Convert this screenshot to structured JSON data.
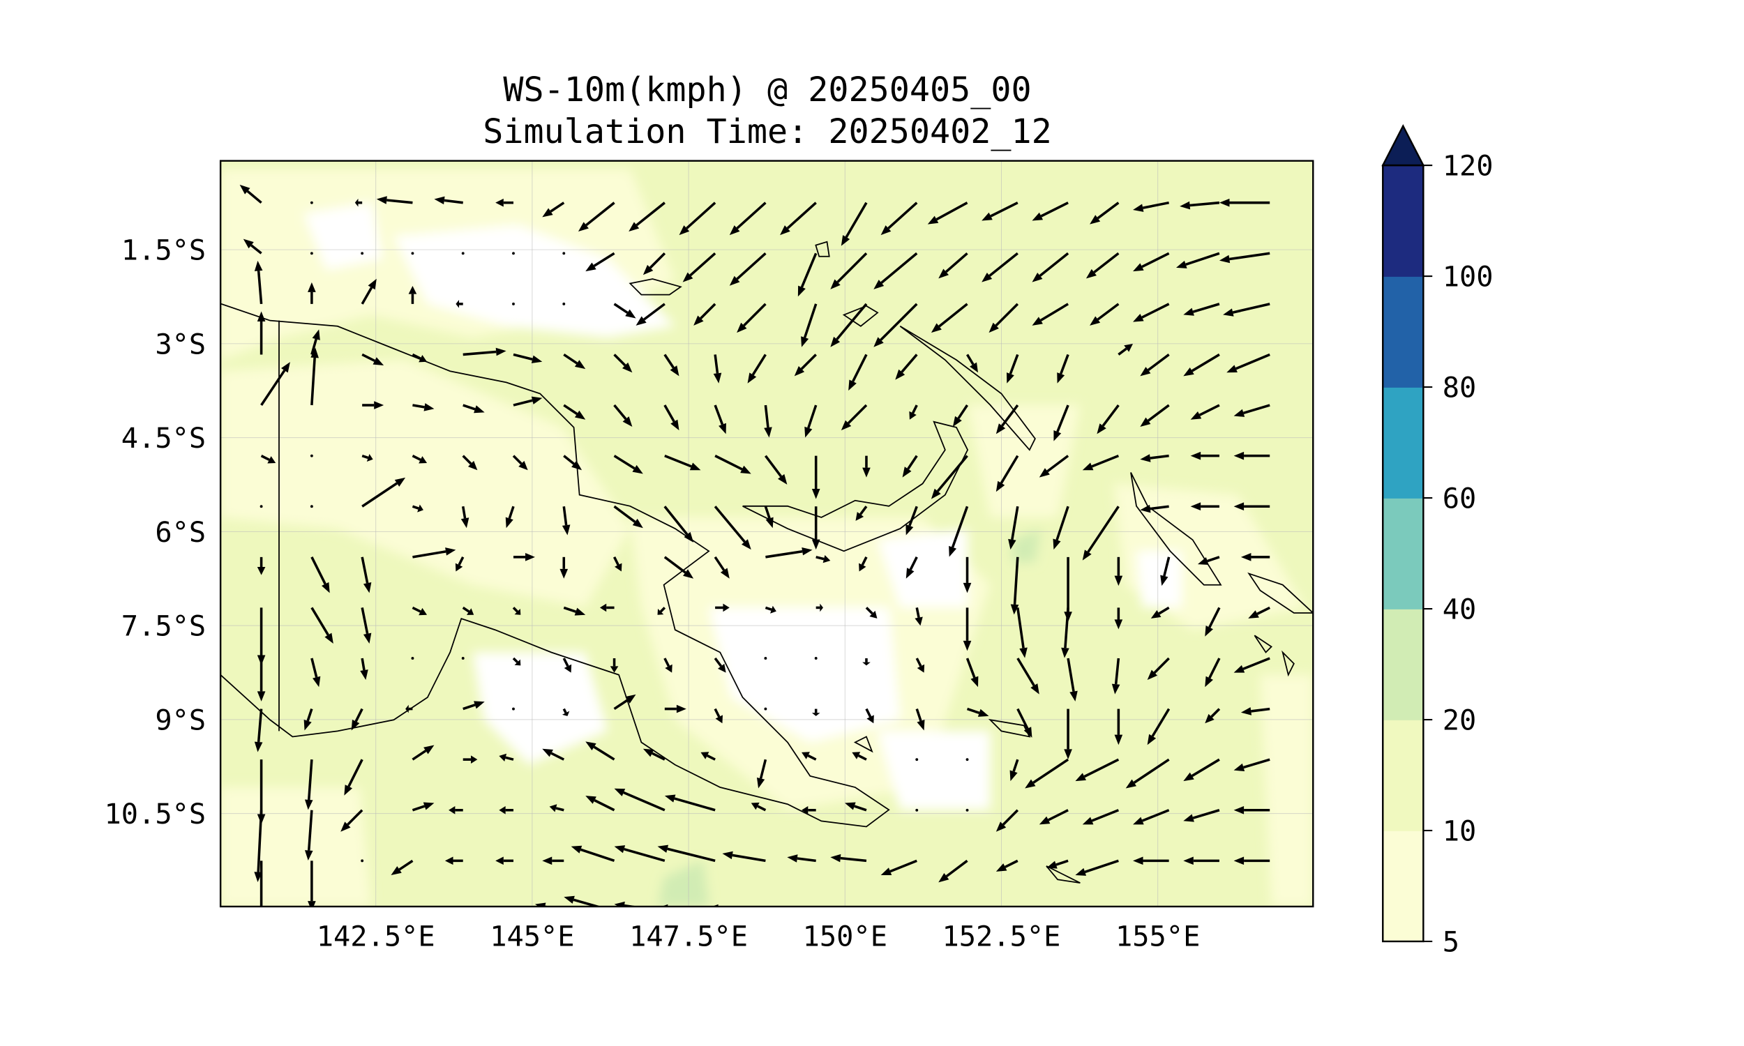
{
  "chart_data": {
    "type": "quiver-contour",
    "title": "WS-10m(kmph) @ 20250405_00",
    "subtitle": "Simulation Time: 20250402_12",
    "xlabel": "",
    "ylabel": "",
    "xlim": [
      140.0,
      157.5
    ],
    "ylim": [
      -12.0,
      -0.1
    ],
    "x_ticks": [
      142.5,
      145,
      147.5,
      150,
      152.5,
      155
    ],
    "x_tick_labels": [
      "142.5°E",
      "145°E",
      "147.5°E",
      "150°E",
      "152.5°E",
      "155°E"
    ],
    "y_ticks": [
      -1.5,
      -3,
      -4.5,
      -6,
      -7.5,
      -9,
      -10.5
    ],
    "y_tick_labels": [
      "1.5°S",
      "3°S",
      "4.5°S",
      "6°S",
      "7.5°S",
      "9°S",
      "10.5°S"
    ],
    "grid": true,
    "colorbar": {
      "levels": [
        5,
        10,
        20,
        40,
        60,
        80,
        100,
        120
      ],
      "tick_labels": [
        "5",
        "10",
        "20",
        "40",
        "60",
        "80",
        "100",
        "120"
      ],
      "colors": [
        "#fbfdd5",
        "#f0f9bf",
        "#d1ecb4",
        "#7bcabc",
        "#2fa3c2",
        "#2262a8",
        "#1d2b7f"
      ],
      "extend_color": "#0c1e56",
      "extend": "max",
      "placement": "right"
    },
    "field_dominant_color": "#eef8bd",
    "wind_grid": {
      "lon_start": 140.67,
      "lon_step": 0.806,
      "lat_start": -0.75,
      "lat_step": -0.808,
      "units": "kmph",
      "rows": [
        [
          [
            -6,
            5
          ],
          [
            0,
            0
          ],
          [
            -2,
            0
          ],
          [
            -10,
            1
          ],
          [
            -8,
            1
          ],
          [
            -5,
            0
          ],
          [
            -6,
            -4
          ],
          [
            -10,
            -8
          ],
          [
            -10,
            -8
          ],
          [
            -10,
            -9
          ],
          [
            -10,
            -9
          ],
          [
            -10,
            -9
          ],
          [
            -7,
            -12
          ],
          [
            -10,
            -9
          ],
          [
            -11,
            -6
          ],
          [
            -10,
            -5
          ],
          [
            -10,
            -5
          ],
          [
            -8,
            -6
          ],
          [
            -10,
            -2
          ],
          [
            -11,
            -1
          ],
          [
            -14,
            0
          ]
        ],
        [
          [
            -5,
            4
          ],
          [
            0,
            0
          ],
          [
            0,
            0
          ],
          [
            0,
            0
          ],
          [
            0,
            0
          ],
          [
            0,
            0
          ],
          [
            0,
            0
          ],
          [
            -8,
            -5
          ],
          [
            -6,
            -6
          ],
          [
            -9,
            -8
          ],
          [
            -10,
            -9
          ],
          [
            -5,
            -12
          ],
          [
            -10,
            -10
          ],
          [
            -12,
            -10
          ],
          [
            -8,
            -7
          ],
          [
            -10,
            -8
          ],
          [
            -10,
            -8
          ],
          [
            -9,
            -7
          ],
          [
            -10,
            -5
          ],
          [
            -12,
            -4
          ],
          [
            -14,
            -2
          ]
        ],
        [
          [
            -1,
            12
          ],
          [
            0,
            6
          ],
          [
            4,
            7
          ],
          [
            0,
            5
          ],
          [
            -2,
            0
          ],
          [
            0,
            0
          ],
          [
            0,
            0
          ],
          [
            6,
            -4
          ],
          [
            -8,
            -6
          ],
          [
            -6,
            -6
          ],
          [
            -8,
            -8
          ],
          [
            -4,
            -12
          ],
          [
            -10,
            -12
          ],
          [
            -12,
            -12
          ],
          [
            -10,
            -8
          ],
          [
            -8,
            -8
          ],
          [
            -10,
            -6
          ],
          [
            -8,
            -6
          ],
          [
            -10,
            -5
          ],
          [
            -10,
            -3
          ],
          [
            -13,
            -3
          ]
        ],
        [
          [
            0,
            12
          ],
          [
            2,
            7
          ],
          [
            6,
            -3
          ],
          [
            4,
            -2
          ],
          [
            12,
            1
          ],
          [
            8,
            -2
          ],
          [
            6,
            -4
          ],
          [
            5,
            -5
          ],
          [
            4,
            -6
          ],
          [
            1,
            -8
          ],
          [
            -5,
            -8
          ],
          [
            -6,
            -6
          ],
          [
            -5,
            -10
          ],
          [
            -6,
            -7
          ],
          [
            3,
            -5
          ],
          [
            -3,
            -8
          ],
          [
            -3,
            -8
          ],
          [
            4,
            3
          ],
          [
            -8,
            -6
          ],
          [
            -10,
            -6
          ],
          [
            -12,
            -5
          ]
        ],
        [
          [
            8,
            12
          ],
          [
            1,
            16
          ],
          [
            6,
            0
          ],
          [
            6,
            -1
          ],
          [
            6,
            -2
          ],
          [
            8,
            2
          ],
          [
            6,
            -4
          ],
          [
            5,
            -6
          ],
          [
            4,
            -7
          ],
          [
            3,
            -8
          ],
          [
            1,
            -9
          ],
          [
            -3,
            -9
          ],
          [
            -7,
            -7
          ],
          [
            -2,
            -4
          ],
          [
            -4,
            -6
          ],
          [
            -6,
            -8
          ],
          [
            -4,
            -10
          ],
          [
            -6,
            -8
          ],
          [
            -8,
            -6
          ],
          [
            -8,
            -4
          ],
          [
            -10,
            -3
          ]
        ],
        [
          [
            4,
            -2
          ],
          [
            0,
            0
          ],
          [
            3,
            -1
          ],
          [
            4,
            -2
          ],
          [
            4,
            -4
          ],
          [
            4,
            -4
          ],
          [
            5,
            -4
          ],
          [
            8,
            -5
          ],
          [
            10,
            -4
          ],
          [
            10,
            -5
          ],
          [
            6,
            -8
          ],
          [
            0,
            -12
          ],
          [
            0,
            -6
          ],
          [
            -4,
            -6
          ],
          [
            -10,
            -12
          ],
          [
            -6,
            -10
          ],
          [
            -8,
            -6
          ],
          [
            -10,
            -4
          ],
          [
            -8,
            -1
          ],
          [
            -8,
            0
          ],
          [
            -10,
            0
          ]
        ],
        [
          [
            0,
            0
          ],
          [
            0,
            0
          ],
          [
            12,
            8
          ],
          [
            3,
            -1
          ],
          [
            1,
            -6
          ],
          [
            -2,
            -6
          ],
          [
            1,
            -8
          ],
          [
            8,
            -6
          ],
          [
            8,
            -10
          ],
          [
            10,
            -12
          ],
          [
            2,
            -6
          ],
          [
            0,
            -12
          ],
          [
            -3,
            -4
          ],
          [
            -3,
            -8
          ],
          [
            -5,
            -14
          ],
          [
            -2,
            -12
          ],
          [
            -4,
            -12
          ],
          [
            -10,
            -15
          ],
          [
            -8,
            -1
          ],
          [
            -8,
            0
          ],
          [
            -10,
            0
          ]
        ],
        [
          [
            0,
            -5
          ],
          [
            5,
            -10
          ],
          [
            2,
            -10
          ],
          [
            12,
            2
          ],
          [
            -2,
            -4
          ],
          [
            6,
            0
          ],
          [
            0,
            -6
          ],
          [
            2,
            -4
          ],
          [
            8,
            -6
          ],
          [
            4,
            -6
          ],
          [
            13,
            2
          ],
          [
            4,
            -1
          ],
          [
            -2,
            -4
          ],
          [
            -3,
            -6
          ],
          [
            0,
            -10
          ],
          [
            -1,
            -16
          ],
          [
            0,
            -18
          ],
          [
            0,
            -8
          ],
          [
            -2,
            -8
          ],
          [
            -6,
            -2
          ],
          [
            -8,
            0
          ]
        ],
        [
          [
            0,
            -16
          ],
          [
            6,
            -10
          ],
          [
            2,
            -10
          ],
          [
            4,
            -2
          ],
          [
            3,
            -2
          ],
          [
            2,
            -2
          ],
          [
            6,
            -2
          ],
          [
            -4,
            0
          ],
          [
            -2,
            -2
          ],
          [
            4,
            0
          ],
          [
            3,
            -1
          ],
          [
            2,
            0
          ],
          [
            3,
            -3
          ],
          [
            1,
            -5
          ],
          [
            0,
            -12
          ],
          [
            2,
            -14
          ],
          [
            -1,
            -14
          ],
          [
            0,
            -6
          ],
          [
            -5,
            -3
          ],
          [
            -4,
            -8
          ],
          [
            -6,
            -3
          ]
        ],
        [
          [
            0,
            -12
          ],
          [
            2,
            -8
          ],
          [
            1,
            -6
          ],
          [
            0,
            0
          ],
          [
            0,
            0
          ],
          [
            2,
            -2
          ],
          [
            2,
            -4
          ],
          [
            0,
            -4
          ],
          [
            2,
            -4
          ],
          [
            3,
            -4
          ],
          [
            0,
            0
          ],
          [
            0,
            0
          ],
          [
            0,
            -2
          ],
          [
            2,
            -4
          ],
          [
            3,
            -8
          ],
          [
            6,
            -10
          ],
          [
            2,
            -12
          ],
          [
            -1,
            -10
          ],
          [
            -6,
            -6
          ],
          [
            -4,
            -8
          ],
          [
            -10,
            -4
          ]
        ],
        [
          [
            -1,
            -12
          ],
          [
            -2,
            -6
          ],
          [
            -3,
            -6
          ],
          [
            -2,
            0
          ],
          [
            6,
            2
          ],
          [
            0,
            0
          ],
          [
            1,
            -2
          ],
          [
            6,
            4
          ],
          [
            6,
            0
          ],
          [
            2,
            -4
          ],
          [
            0,
            0
          ],
          [
            0,
            -2
          ],
          [
            2,
            -4
          ],
          [
            2,
            -6
          ],
          [
            6,
            -2
          ],
          [
            4,
            -8
          ],
          [
            0,
            -14
          ],
          [
            0,
            -10
          ],
          [
            -6,
            -10
          ],
          [
            -4,
            -4
          ],
          [
            -8,
            -1
          ]
        ],
        [
          [
            0,
            -18
          ],
          [
            -1,
            -14
          ],
          [
            -5,
            -10
          ],
          [
            6,
            4
          ],
          [
            4,
            0
          ],
          [
            -4,
            1
          ],
          [
            -6,
            3
          ],
          [
            -8,
            5
          ],
          [
            -6,
            3
          ],
          [
            -4,
            2
          ],
          [
            -2,
            -8
          ],
          [
            -4,
            2
          ],
          [
            -4,
            2
          ],
          [
            0,
            0
          ],
          [
            0,
            0
          ],
          [
            -2,
            -6
          ],
          [
            -12,
            -8
          ],
          [
            -12,
            -6
          ],
          [
            -12,
            -8
          ],
          [
            -10,
            -6
          ],
          [
            -10,
            -3
          ]
        ],
        [
          [
            -1,
            -20
          ],
          [
            -1,
            -14
          ],
          [
            -6,
            -6
          ],
          [
            6,
            2
          ],
          [
            -4,
            0
          ],
          [
            -4,
            0
          ],
          [
            -4,
            1
          ],
          [
            -8,
            4
          ],
          [
            -14,
            6
          ],
          [
            -14,
            4
          ],
          [
            -4,
            2
          ],
          [
            -4,
            0
          ],
          [
            -6,
            2
          ],
          [
            0,
            0
          ],
          [
            0,
            0
          ],
          [
            -6,
            -6
          ],
          [
            -8,
            -4
          ],
          [
            -10,
            -4
          ],
          [
            -10,
            -4
          ],
          [
            -10,
            -3
          ],
          [
            -10,
            0
          ]
        ],
        [
          [
            0,
            -20
          ],
          [
            0,
            -14
          ],
          [
            0,
            0
          ],
          [
            -6,
            -4
          ],
          [
            -5,
            0
          ],
          [
            -5,
            0
          ],
          [
            -6,
            0
          ],
          [
            -12,
            4
          ],
          [
            -14,
            4
          ],
          [
            -16,
            4
          ],
          [
            -12,
            2
          ],
          [
            -8,
            1
          ],
          [
            -10,
            1
          ],
          [
            -10,
            -4
          ],
          [
            -8,
            -6
          ],
          [
            -6,
            -3
          ],
          [
            -6,
            -2
          ],
          [
            -12,
            -4
          ],
          [
            -10,
            0
          ],
          [
            -10,
            0
          ],
          [
            -10,
            0
          ]
        ],
        [
          [
            0,
            -18
          ],
          [
            0,
            0
          ],
          [
            0,
            0
          ],
          [
            -6,
            0
          ],
          [
            -6,
            0
          ],
          [
            -6,
            0
          ],
          [
            -8,
            2
          ],
          [
            -14,
            4
          ],
          [
            -14,
            2
          ],
          [
            -16,
            1
          ],
          [
            -16,
            1
          ],
          [
            -16,
            0
          ],
          [
            -14,
            0
          ],
          [
            -8,
            0
          ],
          [
            -4,
            0
          ],
          [
            -4,
            0
          ],
          [
            -4,
            0
          ],
          [
            -4,
            0
          ],
          [
            -4,
            0
          ],
          [
            -4,
            0
          ],
          [
            -4,
            0
          ]
        ]
      ]
    }
  }
}
